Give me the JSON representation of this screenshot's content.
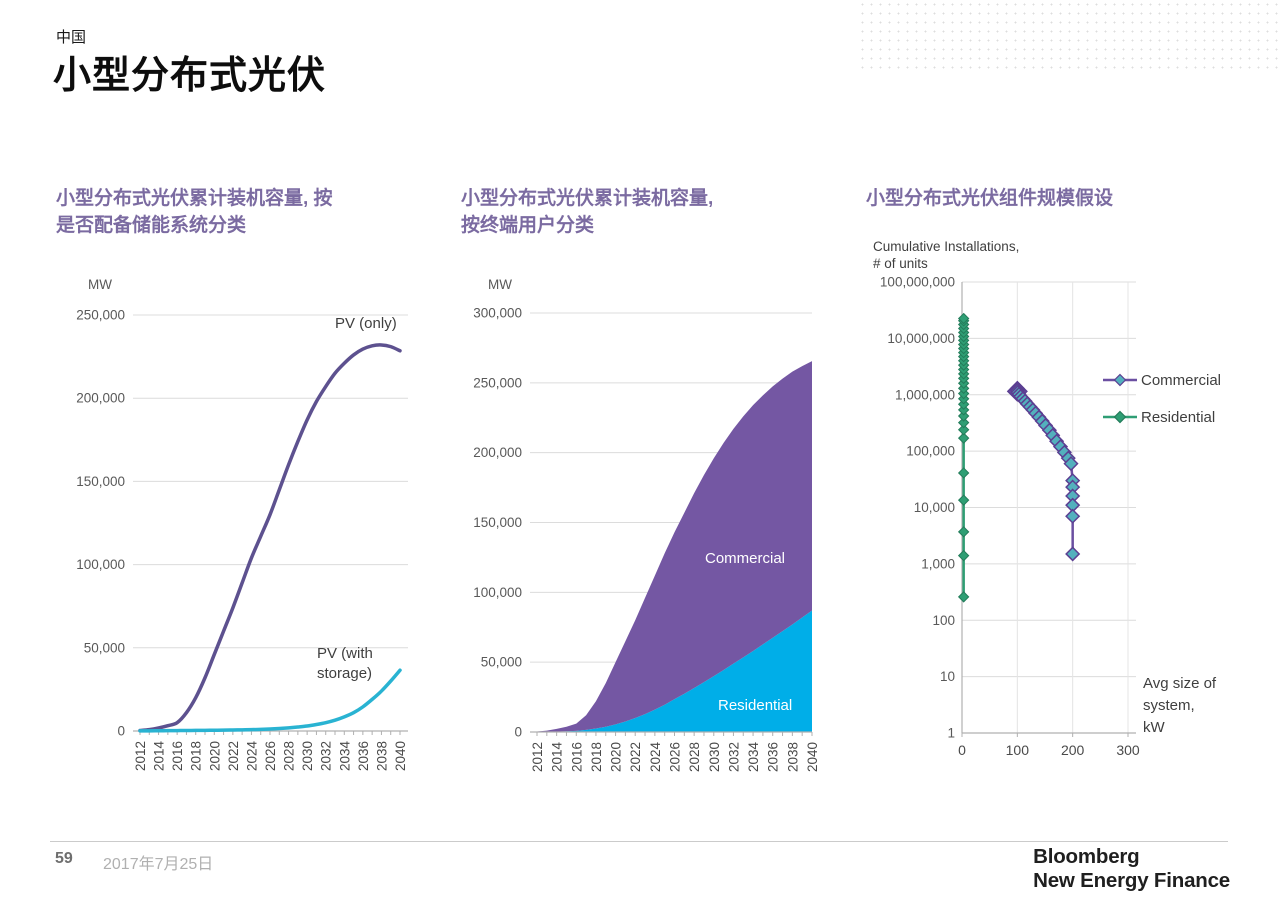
{
  "page": {
    "eyebrow": "中国",
    "title": "小型分布式光伏",
    "footer": {
      "page_number": "59",
      "date": "2017年7月25日",
      "brand_line1": "Bloomberg",
      "brand_line2": "New Energy Finance"
    }
  },
  "colors": {
    "chart_title": "#7b6ba1",
    "grid": "#dcdcdc",
    "axis": "#b0b0b0",
    "tick_text": "#595959",
    "year_text": "#4a4a4a",
    "annotation_text": "#3f3f3f",
    "pv_only": "#5d518f",
    "pv_storage": "#29b3d2",
    "area_commercial": "#7457a3",
    "area_residential": "#00aee8",
    "scatter_commercial_line": "#6b4fa1",
    "scatter_commercial_fill": "#53b0bd",
    "scatter_commercial_stroke": "#5b3f92",
    "scatter_residential": "#2f9e74",
    "scatter_residential_stroke": "#237c5a"
  },
  "chart_data": [
    {
      "type": "line",
      "title_lines": [
        "小型分布式光伏累计装机容量, 按",
        "是否配备储能系统分类"
      ],
      "ylabel": "MW",
      "ylim": [
        0,
        250000
      ],
      "yticks": [
        0,
        50000,
        100000,
        150000,
        200000,
        250000
      ],
      "x": [
        2012,
        2013,
        2014,
        2015,
        2016,
        2017,
        2018,
        2019,
        2020,
        2021,
        2022,
        2023,
        2024,
        2025,
        2026,
        2027,
        2028,
        2029,
        2030,
        2031,
        2032,
        2033,
        2034,
        2035,
        2036,
        2037,
        2038,
        2039,
        2040
      ],
      "x_label_step": 2,
      "grid": true,
      "series": [
        {
          "name": "PV (only)",
          "label_lines": [
            "PV (only)"
          ],
          "values": [
            300,
            800,
            1800,
            3200,
            5000,
            11000,
            20000,
            32000,
            46000,
            60000,
            74000,
            89000,
            104000,
            117000,
            130000,
            145000,
            160000,
            174000,
            187000,
            198000,
            207000,
            215000,
            221000,
            226000,
            229500,
            231500,
            232000,
            231000,
            228500
          ]
        },
        {
          "name": "PV (with storage)",
          "label_lines": [
            "PV (with",
            "storage)"
          ],
          "values": [
            100,
            100,
            150,
            200,
            250,
            300,
            350,
            400,
            450,
            500,
            600,
            700,
            800,
            1000,
            1200,
            1500,
            1900,
            2400,
            3000,
            3900,
            5000,
            6500,
            8500,
            11000,
            14500,
            19000,
            24000,
            30000,
            36500
          ]
        }
      ]
    },
    {
      "type": "area",
      "title_lines": [
        "小型分布式光伏累计装机容量,",
        "按终端用户分类"
      ],
      "ylabel": "MW",
      "ylim": [
        0,
        300000
      ],
      "yticks": [
        0,
        50000,
        100000,
        150000,
        200000,
        250000,
        300000
      ],
      "x": [
        2012,
        2013,
        2014,
        2015,
        2016,
        2017,
        2018,
        2019,
        2020,
        2021,
        2022,
        2023,
        2024,
        2025,
        2026,
        2027,
        2028,
        2029,
        2030,
        2031,
        2032,
        2033,
        2034,
        2035,
        2036,
        2037,
        2038,
        2039,
        2040
      ],
      "x_label_step": 2,
      "grid": true,
      "series": [
        {
          "name": "Commercial",
          "values": [
            350,
            850,
            1900,
            3300,
            5200,
            10500,
            19500,
            31200,
            44500,
            57500,
            70000,
            83200,
            96000,
            108500,
            119500,
            129600,
            139500,
            148300,
            156000,
            162600,
            168000,
            172600,
            176000,
            178300,
            180000,
            180800,
            181000,
            180000,
            178500
          ]
        },
        {
          "name": "Residential",
          "values": [
            50,
            150,
            300,
            500,
            800,
            1500,
            2500,
            3800,
            5500,
            7500,
            10000,
            12800,
            16000,
            19500,
            23500,
            27400,
            31500,
            35700,
            40000,
            44400,
            49000,
            53400,
            58000,
            62700,
            67500,
            72200,
            77000,
            82000,
            87000
          ]
        }
      ]
    },
    {
      "type": "scatter",
      "title_lines": [
        "小型分布式光伏组件规模假设"
      ],
      "ylabel_lines": [
        "Cumulative Installations,",
        "# of units"
      ],
      "xlabel_lines": [
        "Avg size of",
        "system,",
        "kW"
      ],
      "y_scale": "log",
      "ylim": [
        1,
        100000000
      ],
      "ytick_labels": [
        "1",
        "10",
        "100",
        "1,000",
        "10,000",
        "100,000",
        "1,000,000",
        "10,000,000",
        "100,000,000"
      ],
      "xticks": [
        0,
        100,
        200,
        300
      ],
      "xlim": [
        0,
        300
      ],
      "legend_position": "right",
      "series": [
        {
          "name": "Commercial",
          "points": [
            [
              100,
              1300000
            ],
            [
              100,
              1250000
            ],
            [
              100,
              1180000
            ],
            [
              101,
              1100000
            ],
            [
              103,
              1020000
            ],
            [
              106,
              930000
            ],
            [
              110,
              850000
            ],
            [
              114,
              770000
            ],
            [
              118,
              690000
            ],
            [
              123,
              610000
            ],
            [
              128,
              540000
            ],
            [
              133,
              470000
            ],
            [
              139,
              400000
            ],
            [
              145,
              340000
            ],
            [
              151,
              285000
            ],
            [
              158,
              235000
            ],
            [
              164,
              190000
            ],
            [
              171,
              150000
            ],
            [
              178,
              120000
            ],
            [
              185,
              95000
            ],
            [
              192,
              75000
            ],
            [
              197,
              60000
            ],
            [
              200,
              30000
            ],
            [
              200,
              23000
            ],
            [
              200,
              16000
            ],
            [
              200,
              11000
            ],
            [
              200,
              7000
            ],
            [
              200,
              1500
            ]
          ],
          "accent_point": [
            100,
            1150000
          ]
        },
        {
          "name": "Residential",
          "points": [
            [
              3,
              260
            ],
            [
              3,
              1400
            ],
            [
              3,
              3700
            ],
            [
              3,
              13500
            ],
            [
              3,
              41000
            ],
            [
              3,
              170000
            ],
            [
              3,
              240000
            ],
            [
              3,
              320000
            ],
            [
              3,
              420000
            ],
            [
              3,
              540000
            ],
            [
              3,
              680000
            ],
            [
              3,
              850000
            ],
            [
              3,
              1050000
            ],
            [
              3,
              1300000
            ],
            [
              3,
              1600000
            ],
            [
              3,
              1950000
            ],
            [
              3,
              2350000
            ],
            [
              3,
              2800000
            ],
            [
              3,
              3350000
            ],
            [
              3,
              4000000
            ],
            [
              3,
              4750000
            ],
            [
              3,
              5600000
            ],
            [
              3,
              6600000
            ],
            [
              3,
              7800000
            ],
            [
              3,
              9200000
            ],
            [
              3,
              10800000
            ],
            [
              3,
              12700000
            ],
            [
              3,
              15000000
            ],
            [
              3,
              17600000
            ],
            [
              3,
              20500000
            ],
            [
              3,
              22500000
            ]
          ]
        }
      ]
    }
  ]
}
